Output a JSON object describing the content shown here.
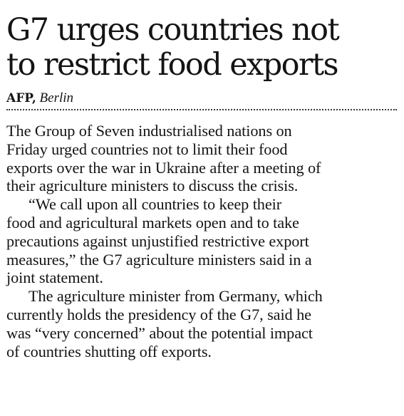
{
  "headline": {
    "line1": "G7 urges countries not",
    "line2": "to restrict food exports"
  },
  "byline": {
    "agency": "AFP,",
    "city": "Berlin"
  },
  "body": {
    "p1": [
      "The Group of Seven industrialised nations on",
      "Friday urged countries not to limit their food",
      "exports over the war in Ukraine after a meeting of",
      "their agriculture ministers to discuss the crisis."
    ],
    "p2": [
      "“We call upon all countries to keep their",
      "food and agricultural markets open and to take",
      "precautions against unjustified restrictive export",
      "measures,” the G7 agriculture ministers said in a",
      "joint statement."
    ],
    "p3": [
      "The agriculture minister from Germany, which",
      "currently holds the presidency of the G7, said he",
      "was “very concerned” about the potential impact",
      "of countries shutting off exports."
    ]
  }
}
